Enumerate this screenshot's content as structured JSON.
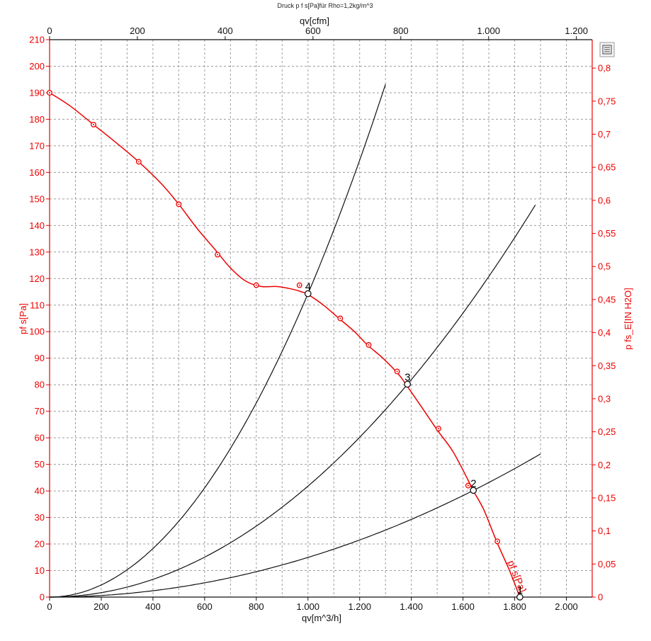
{
  "chart_data": {
    "type": "line",
    "title": "Druck p f s[Pa]für Rho=1,2kg/m^3",
    "xlabel": "qv[m^3/h]",
    "x2label": "qv[cfm]",
    "ylabel": "pf s[Pa]",
    "y2label": "p fs_E[IN H2O]",
    "xlim": [
      0,
      2100
    ],
    "ylim": [
      0,
      210
    ],
    "x2lim": [
      0,
      1236
    ],
    "y2lim": [
      0,
      0.843
    ],
    "grid": true,
    "x_ticks": [
      "0",
      "200",
      "400",
      "600",
      "800",
      "1.000",
      "1.200",
      "1.400",
      "1.600",
      "1.800",
      "2.000"
    ],
    "x_tick_values": [
      0,
      200,
      400,
      600,
      800,
      1000,
      1200,
      1400,
      1600,
      1800,
      2000
    ],
    "y_ticks": [
      "0",
      "10",
      "20",
      "30",
      "40",
      "50",
      "60",
      "70",
      "80",
      "90",
      "100",
      "110",
      "120",
      "130",
      "140",
      "150",
      "160",
      "170",
      "180",
      "190",
      "200",
      "210"
    ],
    "y_tick_values": [
      0,
      10,
      20,
      30,
      40,
      50,
      60,
      70,
      80,
      90,
      100,
      110,
      120,
      130,
      140,
      150,
      160,
      170,
      180,
      190,
      200,
      210
    ],
    "x2_ticks": [
      "0",
      "200",
      "400",
      "600",
      "800",
      "1.000",
      "1.200"
    ],
    "x2_tick_values": [
      0,
      200,
      400,
      600,
      800,
      1000,
      1200
    ],
    "y2_ticks": [
      "0",
      "0,05",
      "0,1",
      "0,15",
      "0,2",
      "0,25",
      "0,3",
      "0,35",
      "0,4",
      "0,45",
      "0,5",
      "0,55",
      "0,6",
      "0,65",
      "0,7",
      "0,75",
      "0,8"
    ],
    "y2_tick_values": [
      0,
      0.05,
      0.1,
      0.15,
      0.2,
      0.25,
      0.3,
      0.35,
      0.4,
      0.45,
      0.5,
      0.55,
      0.6,
      0.65,
      0.7,
      0.75,
      0.8
    ],
    "series": [
      {
        "name": "pf s[Pa]",
        "color": "#ee0000",
        "x": [
          0,
          80,
          170,
          260,
          345,
          430,
          500,
          570,
          640,
          700,
          760,
          820,
          880,
          940,
          975,
          1000,
          1060,
          1120,
          1180,
          1230,
          1290,
          1350,
          1380,
          1430,
          1500,
          1560,
          1620,
          1640,
          1680,
          1730,
          1780,
          1820
        ],
        "y": [
          190,
          185,
          178,
          171,
          164,
          156,
          148,
          139,
          131,
          124,
          119,
          117,
          117,
          116,
          115,
          114,
          110,
          105,
          100,
          95,
          90,
          84,
          80,
          73,
          63,
          55,
          44,
          40,
          33,
          21,
          10,
          0
        ],
        "markers_x": [
          0,
          170,
          345,
          500,
          650,
          800,
          967,
          1125,
          1235,
          1345,
          1505,
          1620,
          1733
        ],
        "markers_y": [
          190,
          178,
          164,
          148,
          129,
          117.5,
          117.5,
          105,
          95,
          85,
          63.5,
          42,
          21
        ]
      }
    ],
    "system_curves": [
      {
        "k": 0.0001143,
        "x_end": 1305
      },
      {
        "k": 4.18e-05,
        "x_end": 1880
      },
      {
        "k": 1.494e-05,
        "x_end": 1902
      }
    ],
    "operating_points": [
      {
        "label": "1",
        "x": 1820,
        "y": 0
      },
      {
        "label": "2",
        "x": 1640,
        "y": 40.2
      },
      {
        "label": "3",
        "x": 1385,
        "y": 80.2
      },
      {
        "label": "4",
        "x": 1000,
        "y": 114.3
      }
    ]
  },
  "toolbar": {
    "zoom_icon": "zoom-fit-icon"
  }
}
